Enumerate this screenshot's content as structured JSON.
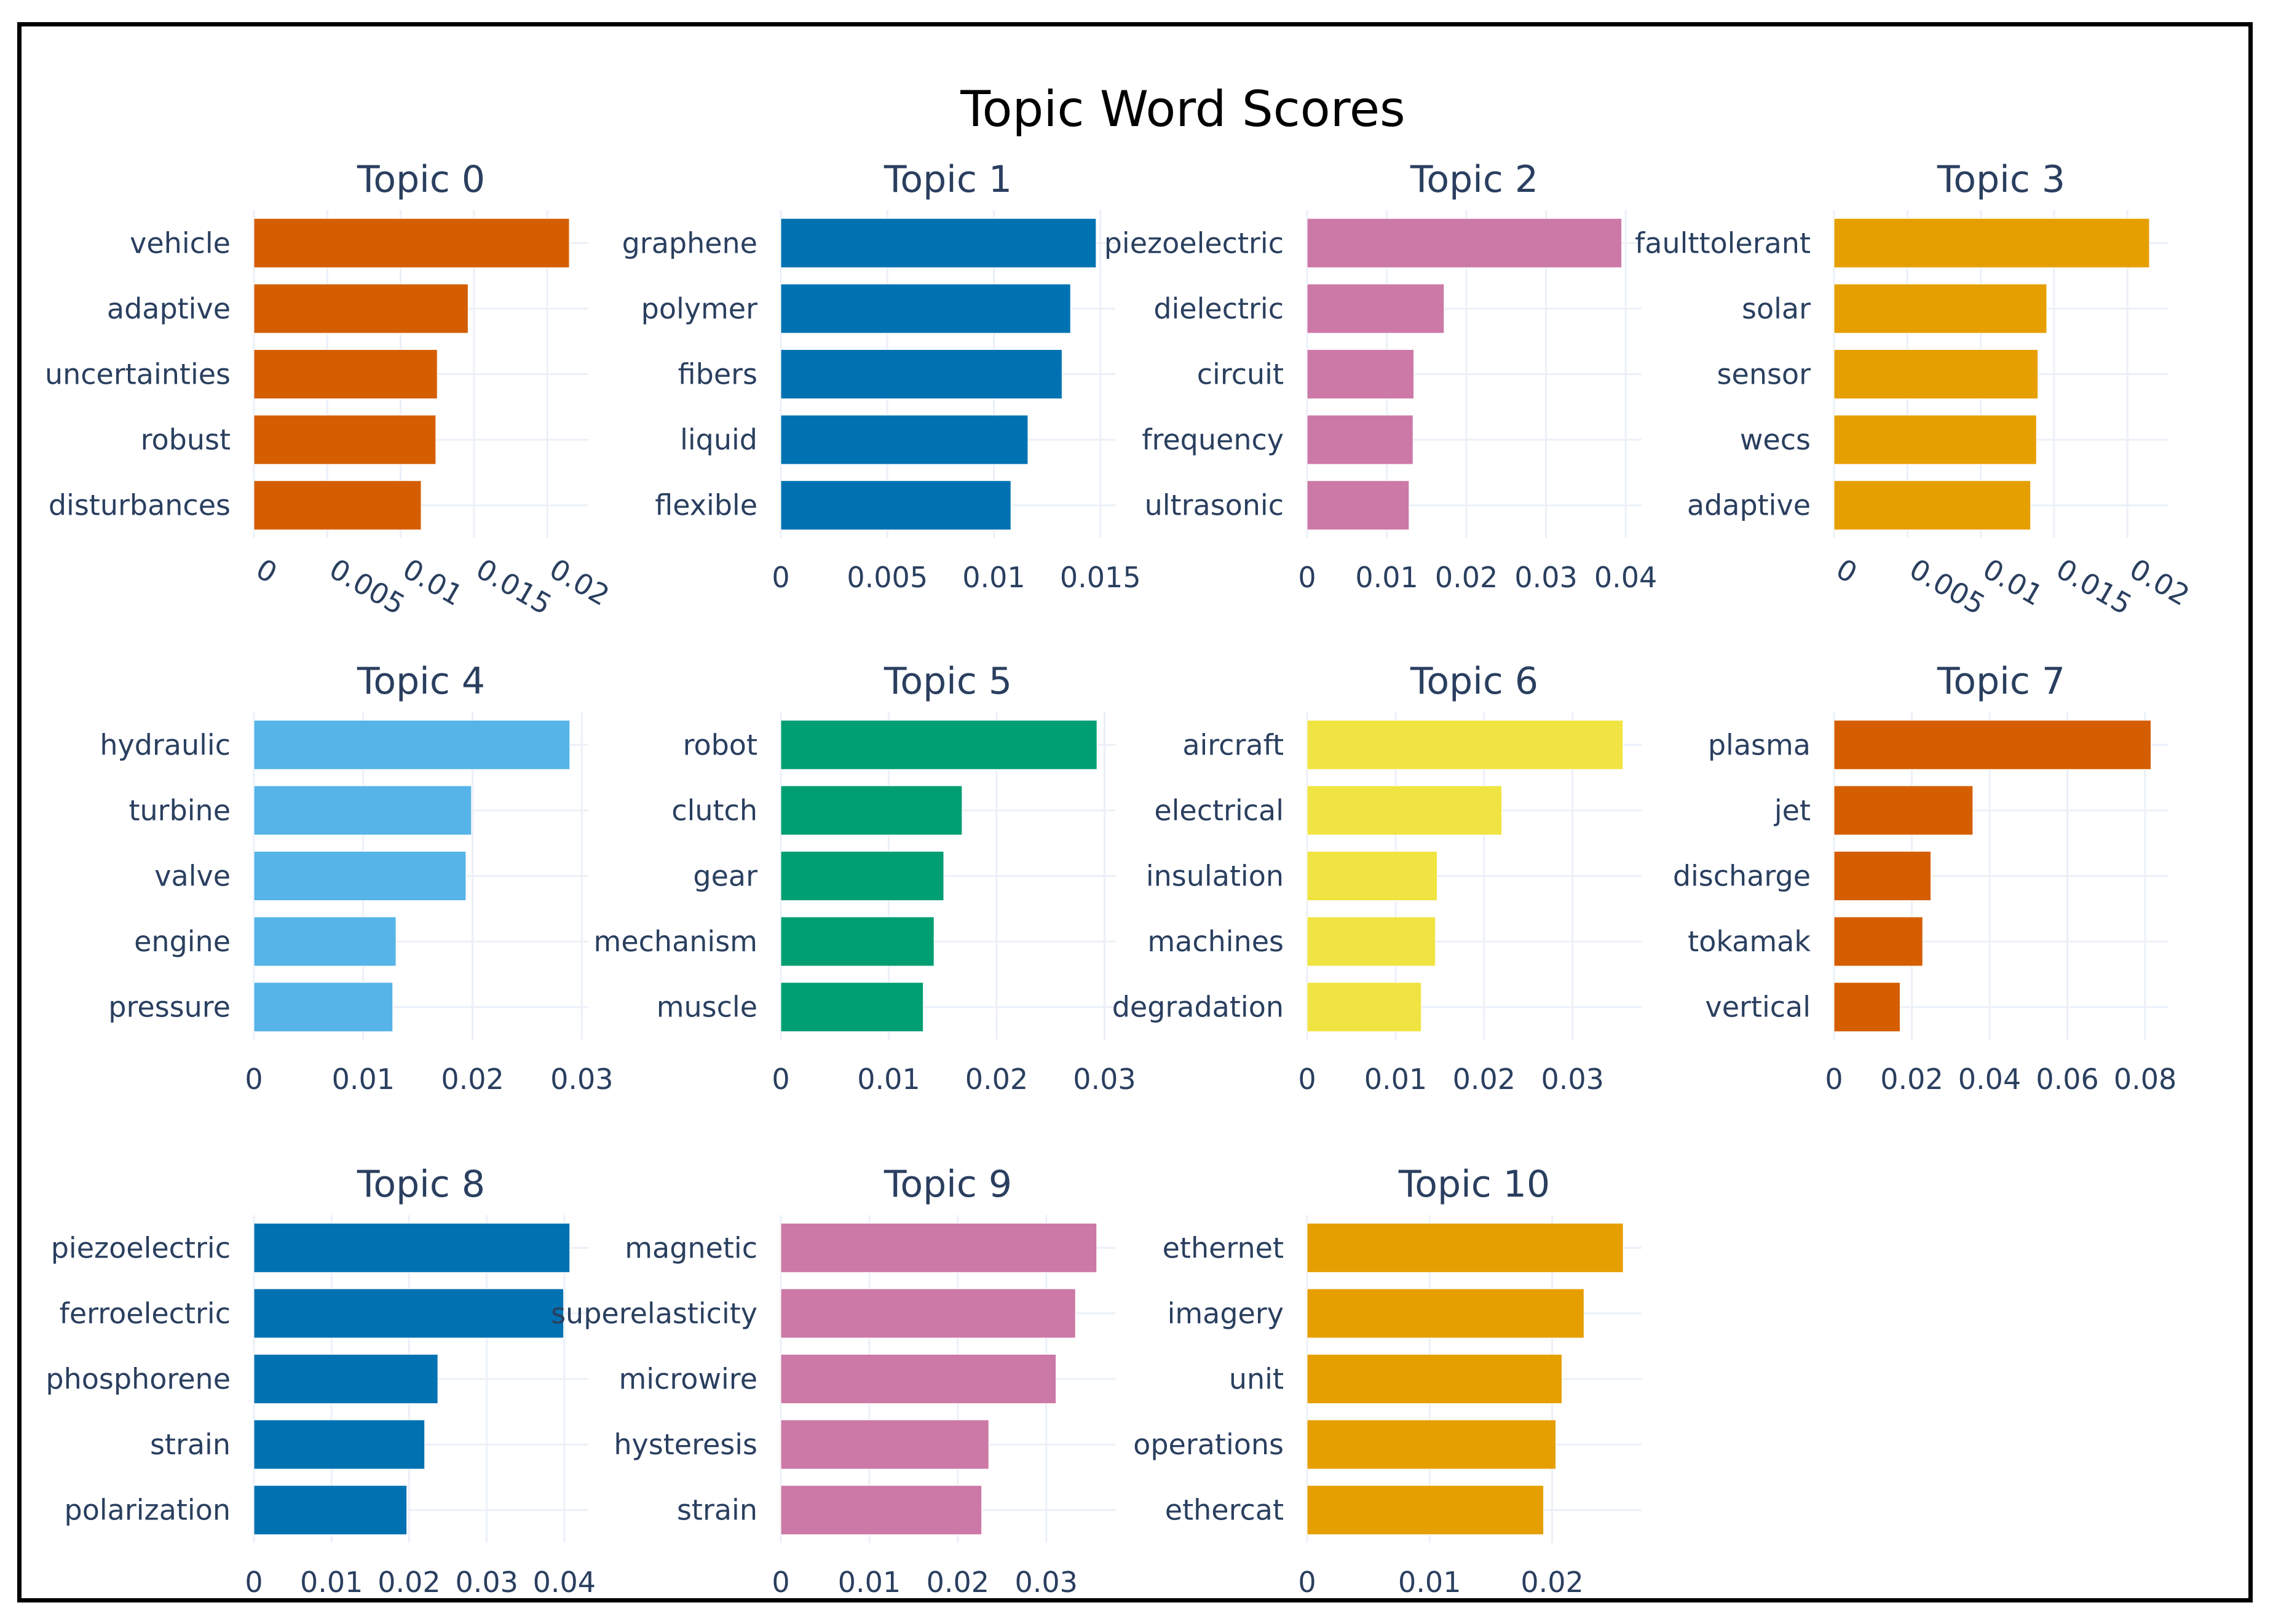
{
  "chart_data": {
    "type": "bar",
    "orientation": "horizontal",
    "title": "Topic Word Scores",
    "subplots": [
      {
        "title": "Topic 0",
        "color": "#D55E00",
        "categories": [
          "vehicle",
          "adaptive",
          "uncertainties",
          "robust",
          "disturbances"
        ],
        "values": [
          0.0215,
          0.0146,
          0.0125,
          0.0124,
          0.0114
        ],
        "ticks": [
          0,
          0.005,
          0.01,
          0.015,
          0.02
        ],
        "tick_labels": [
          "0",
          "0.005",
          "0.01",
          "0.015",
          "0.02"
        ],
        "xlim": [
          0,
          0.0228
        ],
        "rotated_ticks": true
      },
      {
        "title": "Topic 1",
        "color": "#0072B2",
        "categories": [
          "graphene",
          "polymer",
          "fibers",
          "liquid",
          "flexible"
        ],
        "values": [
          0.0148,
          0.0136,
          0.0132,
          0.0116,
          0.0108
        ],
        "ticks": [
          0,
          0.005,
          0.01,
          0.015
        ],
        "tick_labels": [
          "0",
          "0.005",
          "0.01",
          "0.015"
        ],
        "xlim": [
          0,
          0.0157
        ],
        "rotated_ticks": false
      },
      {
        "title": "Topic 2",
        "color": "#CC79A7",
        "categories": [
          "piezoelectric",
          "dielectric",
          "circuit",
          "frequency",
          "ultrasonic"
        ],
        "values": [
          0.0395,
          0.0172,
          0.0134,
          0.0133,
          0.0128
        ],
        "ticks": [
          0,
          0.01,
          0.02,
          0.03,
          0.04
        ],
        "tick_labels": [
          "0",
          "0.01",
          "0.02",
          "0.03",
          "0.04"
        ],
        "xlim": [
          0,
          0.042
        ],
        "rotated_ticks": false
      },
      {
        "title": "Topic 3",
        "color": "#E69F00",
        "categories": [
          "faulttolerant",
          "solar",
          "sensor",
          "wecs",
          "adaptive"
        ],
        "values": [
          0.0215,
          0.0145,
          0.0139,
          0.0138,
          0.0134
        ],
        "ticks": [
          0,
          0.005,
          0.01,
          0.015,
          0.02
        ],
        "tick_labels": [
          "0",
          "0.005",
          "0.01",
          "0.015",
          "0.02"
        ],
        "xlim": [
          0,
          0.0228
        ],
        "rotated_ticks": true
      },
      {
        "title": "Topic 4",
        "color": "#56B4E9",
        "categories": [
          "hydraulic",
          "turbine",
          "valve",
          "engine",
          "pressure"
        ],
        "values": [
          0.0289,
          0.0199,
          0.0194,
          0.013,
          0.0127
        ],
        "ticks": [
          0,
          0.01,
          0.02,
          0.03
        ],
        "tick_labels": [
          "0",
          "0.01",
          "0.02",
          "0.03"
        ],
        "xlim": [
          0,
          0.0306
        ],
        "rotated_ticks": false
      },
      {
        "title": "Topic 5",
        "color": "#009E73",
        "categories": [
          "robot",
          "clutch",
          "gear",
          "mechanism",
          "muscle"
        ],
        "values": [
          0.0293,
          0.0168,
          0.0151,
          0.0142,
          0.0132
        ],
        "ticks": [
          0,
          0.01,
          0.02,
          0.03
        ],
        "tick_labels": [
          "0",
          "0.01",
          "0.02",
          "0.03"
        ],
        "xlim": [
          0,
          0.031
        ],
        "rotated_ticks": false
      },
      {
        "title": "Topic 6",
        "color": "#F0E442",
        "categories": [
          "aircraft",
          "electrical",
          "insulation",
          "machines",
          "degradation"
        ],
        "values": [
          0.0357,
          0.022,
          0.0147,
          0.0145,
          0.0129
        ],
        "ticks": [
          0,
          0.01,
          0.02,
          0.03
        ],
        "tick_labels": [
          "0",
          "0.01",
          "0.02",
          "0.03"
        ],
        "xlim": [
          0,
          0.0378
        ],
        "rotated_ticks": false
      },
      {
        "title": "Topic 7",
        "color": "#D55E00",
        "categories": [
          "plasma",
          "jet",
          "discharge",
          "tokamak",
          "vertical"
        ],
        "values": [
          0.0815,
          0.0357,
          0.0249,
          0.0228,
          0.017
        ],
        "ticks": [
          0,
          0.02,
          0.04,
          0.06,
          0.08
        ],
        "tick_labels": [
          "0",
          "0.02",
          "0.04",
          "0.06",
          "0.08"
        ],
        "xlim": [
          0,
          0.086
        ],
        "rotated_ticks": false
      },
      {
        "title": "Topic 8",
        "color": "#0072B2",
        "categories": [
          "piezoelectric",
          "ferroelectric",
          "phosphorene",
          "strain",
          "polarization"
        ],
        "values": [
          0.0407,
          0.0399,
          0.0237,
          0.022,
          0.0197
        ],
        "ticks": [
          0,
          0.01,
          0.02,
          0.03,
          0.04
        ],
        "tick_labels": [
          "0",
          "0.01",
          "0.02",
          "0.03",
          "0.04"
        ],
        "xlim": [
          0,
          0.0431
        ],
        "rotated_ticks": false
      },
      {
        "title": "Topic 9",
        "color": "#CC79A7",
        "categories": [
          "magnetic",
          "superelasticity",
          "microwire",
          "hysteresis",
          "strain"
        ],
        "values": [
          0.0357,
          0.0333,
          0.0311,
          0.0235,
          0.0227
        ],
        "ticks": [
          0,
          0.01,
          0.02,
          0.03
        ],
        "tick_labels": [
          "0",
          "0.01",
          "0.02",
          "0.03"
        ],
        "xlim": [
          0,
          0.0378
        ],
        "rotated_ticks": false
      },
      {
        "title": "Topic 10",
        "color": "#E69F00",
        "categories": [
          "ethernet",
          "imagery",
          "unit",
          "operations",
          "ethercat"
        ],
        "values": [
          0.0258,
          0.0226,
          0.0208,
          0.0203,
          0.0193
        ],
        "ticks": [
          0,
          0.01,
          0.02
        ],
        "tick_labels": [
          "0",
          "0.01",
          "0.02"
        ],
        "xlim": [
          0,
          0.0273
        ],
        "rotated_ticks": false
      }
    ]
  }
}
